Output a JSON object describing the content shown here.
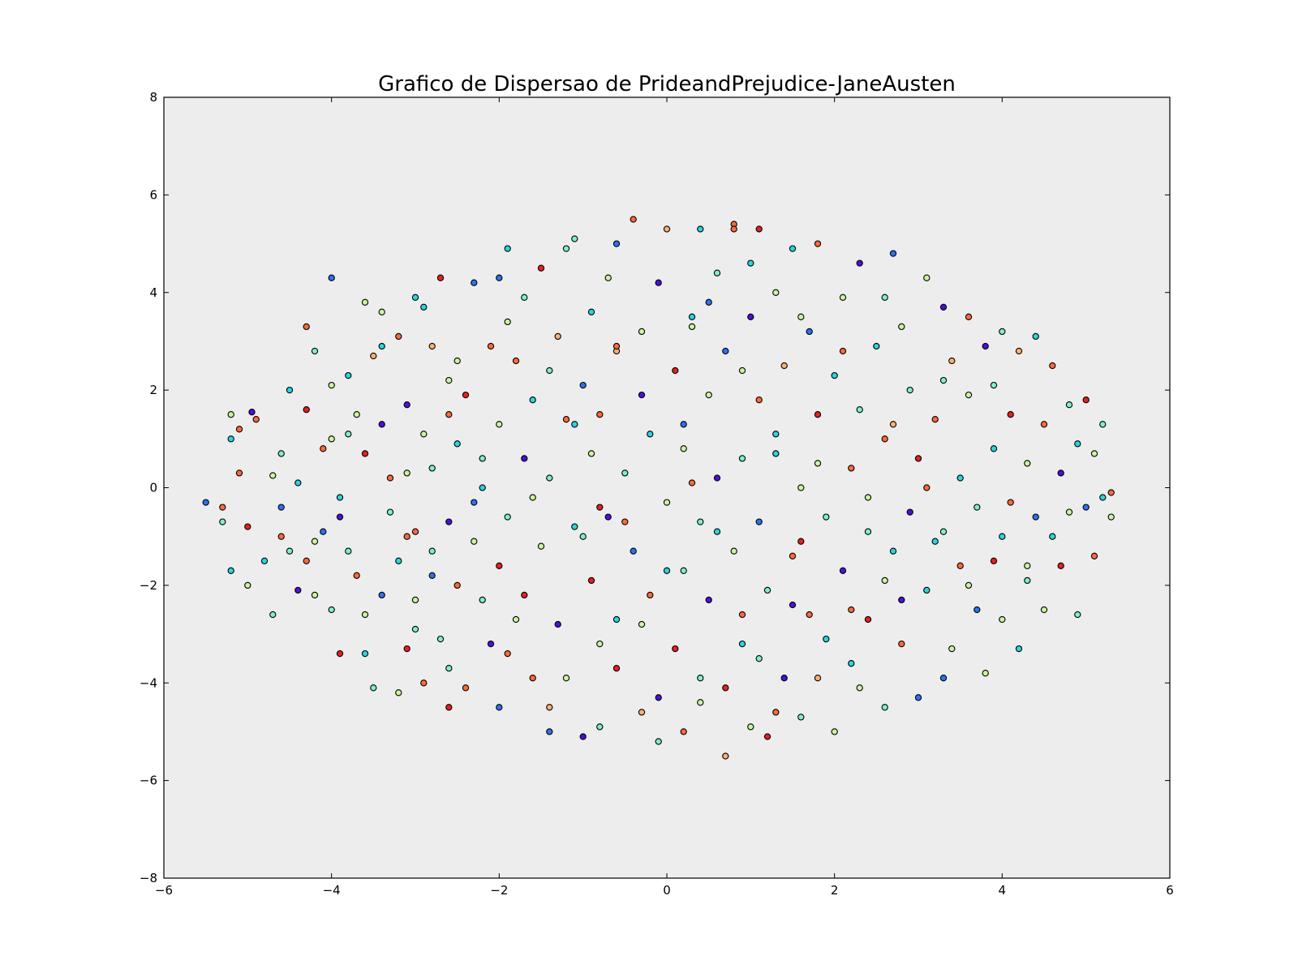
{
  "chart_data": {
    "type": "scatter",
    "title": "Grafico de Dispersao de PrideandPrejudice-JaneAusten",
    "xlabel": "",
    "ylabel": "",
    "xlim": [
      -6,
      6
    ],
    "ylim": [
      -8,
      8
    ],
    "xticks": [
      -6,
      -4,
      -2,
      0,
      2,
      4,
      6
    ],
    "yticks": [
      -8,
      -6,
      -4,
      -2,
      0,
      2,
      4,
      6,
      8
    ],
    "xtick_labels": [
      "−6",
      "−4",
      "−2",
      "0",
      "2",
      "4",
      "6"
    ],
    "ytick_labels": [
      "−8",
      "−6",
      "−4",
      "−2",
      "0",
      "2",
      "4",
      "6",
      "8"
    ],
    "grid": false,
    "legend": "none",
    "plot_background": "#ededed",
    "point_colormap": [
      "#4b0fe0",
      "#2c72f0",
      "#2ad4e0",
      "#7ef0c8",
      "#c9f59c",
      "#ffb070",
      "#ff6a3a",
      "#e8201a"
    ],
    "points": [
      [
        -5.5,
        -0.3,
        1
      ],
      [
        -5.3,
        -0.4,
        6
      ],
      [
        -5.3,
        -0.7,
        3
      ],
      [
        -5.2,
        1.0,
        2
      ],
      [
        -5.2,
        1.5,
        4
      ],
      [
        -5.1,
        1.2,
        6
      ],
      [
        -5.1,
        0.3,
        6
      ],
      [
        -5.2,
        -1.7,
        2
      ],
      [
        -5.0,
        -2.0,
        4
      ],
      [
        -5.0,
        -0.8,
        7
      ],
      [
        -4.9,
        1.4,
        6
      ],
      [
        -4.95,
        1.55,
        0
      ],
      [
        -4.8,
        -1.5,
        2
      ],
      [
        -4.7,
        0.25,
        4
      ],
      [
        -4.7,
        -2.6,
        3
      ],
      [
        -4.6,
        -0.4,
        1
      ],
      [
        -4.5,
        -1.3,
        3
      ],
      [
        -4.5,
        2.0,
        2
      ],
      [
        -4.4,
        -2.1,
        0
      ],
      [
        -4.4,
        0.1,
        2
      ],
      [
        -4.3,
        1.6,
        7
      ],
      [
        -4.3,
        -1.5,
        6
      ],
      [
        -4.2,
        -2.2,
        4
      ],
      [
        -4.2,
        2.8,
        3
      ],
      [
        -4.1,
        -0.9,
        1
      ],
      [
        -4.1,
        0.8,
        6
      ],
      [
        -4.0,
        4.3,
        1
      ],
      [
        -4.0,
        -2.5,
        3
      ],
      [
        -4.0,
        1.0,
        4
      ],
      [
        -3.9,
        -3.4,
        7
      ],
      [
        -3.9,
        -0.6,
        0
      ],
      [
        -3.8,
        2.3,
        2
      ],
      [
        -3.8,
        -1.3,
        3
      ],
      [
        -3.7,
        -1.8,
        6
      ],
      [
        -3.7,
        1.5,
        4
      ],
      [
        -3.6,
        -3.4,
        2
      ],
      [
        -3.6,
        0.7,
        7
      ],
      [
        -3.5,
        -4.1,
        3
      ],
      [
        -3.5,
        2.7,
        5
      ],
      [
        -3.4,
        -2.2,
        1
      ],
      [
        -3.4,
        1.3,
        0
      ],
      [
        -3.4,
        3.6,
        4
      ],
      [
        -3.3,
        -0.5,
        3
      ],
      [
        -3.2,
        -1.5,
        2
      ],
      [
        -3.2,
        3.1,
        6
      ],
      [
        -3.1,
        -3.3,
        7
      ],
      [
        -3.1,
        0.3,
        4
      ],
      [
        -3.1,
        1.7,
        0
      ],
      [
        -3.0,
        -2.9,
        3
      ],
      [
        -3.0,
        -0.9,
        6
      ],
      [
        -3.0,
        3.9,
        2
      ],
      [
        -2.9,
        -4.0,
        6
      ],
      [
        -2.9,
        1.1,
        4
      ],
      [
        -2.8,
        -1.8,
        1
      ],
      [
        -2.8,
        0.4,
        3
      ],
      [
        -2.8,
        2.9,
        5
      ],
      [
        -2.7,
        4.3,
        7
      ],
      [
        -2.7,
        -3.1,
        3
      ],
      [
        -2.6,
        -0.7,
        0
      ],
      [
        -2.6,
        2.2,
        4
      ],
      [
        -2.6,
        -4.5,
        7
      ],
      [
        -2.5,
        -2.0,
        6
      ],
      [
        -2.5,
        0.9,
        2
      ],
      [
        -2.4,
        1.9,
        7
      ],
      [
        -2.4,
        -4.1,
        6
      ],
      [
        -2.3,
        4.2,
        1
      ],
      [
        -2.3,
        -1.1,
        4
      ],
      [
        -2.2,
        -2.3,
        3
      ],
      [
        -2.2,
        0.0,
        2
      ],
      [
        -2.1,
        2.9,
        6
      ],
      [
        -2.1,
        -3.2,
        0
      ],
      [
        -2.0,
        -4.5,
        1
      ],
      [
        -2.0,
        1.3,
        4
      ],
      [
        -2.0,
        -1.6,
        7
      ],
      [
        -1.9,
        4.9,
        2
      ],
      [
        -1.9,
        -0.6,
        3
      ],
      [
        -1.8,
        2.6,
        6
      ],
      [
        -1.8,
        -2.7,
        4
      ],
      [
        -1.7,
        0.6,
        0
      ],
      [
        -1.7,
        3.9,
        3
      ],
      [
        -1.6,
        -3.9,
        6
      ],
      [
        -1.6,
        1.8,
        2
      ],
      [
        -1.5,
        -1.2,
        4
      ],
      [
        -1.5,
        4.5,
        7
      ],
      [
        -1.4,
        -5.0,
        1
      ],
      [
        -1.4,
        0.2,
        3
      ],
      [
        -1.3,
        -2.8,
        0
      ],
      [
        -1.3,
        3.1,
        5
      ],
      [
        -1.2,
        1.4,
        6
      ],
      [
        -1.2,
        -3.9,
        4
      ],
      [
        -1.1,
        5.1,
        3
      ],
      [
        -1.1,
        -0.8,
        2
      ],
      [
        -1.0,
        2.1,
        1
      ],
      [
        -1.0,
        -5.1,
        0
      ],
      [
        -0.9,
        0.7,
        4
      ],
      [
        -0.9,
        -1.9,
        7
      ],
      [
        -0.9,
        3.6,
        2
      ],
      [
        -0.8,
        -4.9,
        3
      ],
      [
        -0.8,
        1.5,
        6
      ],
      [
        -0.7,
        -0.6,
        0
      ],
      [
        -0.7,
        4.3,
        4
      ],
      [
        -0.6,
        -2.7,
        2
      ],
      [
        -0.6,
        2.8,
        5
      ],
      [
        -0.6,
        -3.7,
        7
      ],
      [
        -0.5,
        0.3,
        3
      ],
      [
        -0.4,
        5.5,
        6
      ],
      [
        -0.4,
        -1.3,
        1
      ],
      [
        -0.3,
        3.2,
        4
      ],
      [
        -0.3,
        -4.6,
        5
      ],
      [
        -0.2,
        1.1,
        2
      ],
      [
        -0.2,
        -2.2,
        6
      ],
      [
        -0.1,
        4.2,
        0
      ],
      [
        -0.1,
        -5.2,
        3
      ],
      [
        0.0,
        5.3,
        5
      ],
      [
        0.0,
        -0.3,
        4
      ],
      [
        0.1,
        2.4,
        7
      ],
      [
        0.1,
        -3.3,
        7
      ],
      [
        0.2,
        1.3,
        1
      ],
      [
        0.2,
        -1.7,
        3
      ],
      [
        0.2,
        -5.0,
        6
      ],
      [
        0.3,
        3.5,
        2
      ],
      [
        0.3,
        0.1,
        6
      ],
      [
        0.4,
        -4.4,
        4
      ],
      [
        0.4,
        5.3,
        2
      ],
      [
        0.5,
        -2.3,
        0
      ],
      [
        0.5,
        1.9,
        4
      ],
      [
        0.6,
        4.4,
        3
      ],
      [
        0.6,
        -0.9,
        2
      ],
      [
        0.7,
        -5.5,
        5
      ],
      [
        0.7,
        -4.1,
        7
      ],
      [
        0.7,
        2.8,
        1
      ],
      [
        0.8,
        -1.3,
        4
      ],
      [
        0.8,
        5.4,
        6
      ],
      [
        0.9,
        0.6,
        3
      ],
      [
        0.9,
        -3.2,
        2
      ],
      [
        1.0,
        3.5,
        0
      ],
      [
        1.0,
        -4.9,
        4
      ],
      [
        1.1,
        1.8,
        6
      ],
      [
        1.1,
        -0.7,
        1
      ],
      [
        1.1,
        5.3,
        7
      ],
      [
        1.2,
        -5.1,
        7
      ],
      [
        1.2,
        -2.1,
        3
      ],
      [
        1.3,
        4.0,
        4
      ],
      [
        1.3,
        0.7,
        2
      ],
      [
        1.4,
        -3.9,
        0
      ],
      [
        1.4,
        2.5,
        5
      ],
      [
        1.5,
        -1.4,
        6
      ],
      [
        1.5,
        4.9,
        2
      ],
      [
        1.6,
        -4.7,
        3
      ],
      [
        1.6,
        0.0,
        4
      ],
      [
        1.7,
        3.2,
        1
      ],
      [
        1.7,
        -2.6,
        6
      ],
      [
        1.8,
        1.5,
        7
      ],
      [
        1.8,
        -3.9,
        5
      ],
      [
        1.8,
        5.0,
        6
      ],
      [
        1.9,
        -0.6,
        3
      ],
      [
        2.0,
        2.3,
        2
      ],
      [
        2.0,
        -5.0,
        4
      ],
      [
        2.1,
        -1.7,
        0
      ],
      [
        2.1,
        3.9,
        4
      ],
      [
        2.2,
        0.4,
        6
      ],
      [
        2.2,
        -3.6,
        2
      ],
      [
        2.3,
        1.6,
        3
      ],
      [
        2.3,
        4.6,
        0
      ],
      [
        2.4,
        -2.7,
        7
      ],
      [
        2.4,
        -0.2,
        4
      ],
      [
        2.5,
        2.9,
        2
      ],
      [
        2.6,
        -4.5,
        3
      ],
      [
        2.6,
        1.0,
        6
      ],
      [
        2.7,
        4.8,
        1
      ],
      [
        2.7,
        -1.3,
        2
      ],
      [
        2.8,
        3.3,
        4
      ],
      [
        2.8,
        -3.2,
        6
      ],
      [
        2.9,
        -0.5,
        0
      ],
      [
        2.9,
        2.0,
        3
      ],
      [
        3.0,
        -4.3,
        1
      ],
      [
        3.0,
        0.6,
        7
      ],
      [
        3.1,
        4.3,
        4
      ],
      [
        3.1,
        -2.1,
        2
      ],
      [
        3.2,
        1.4,
        6
      ],
      [
        3.3,
        3.7,
        0
      ],
      [
        3.3,
        -0.9,
        3
      ],
      [
        3.4,
        -3.3,
        4
      ],
      [
        3.4,
        2.6,
        5
      ],
      [
        3.5,
        0.2,
        2
      ],
      [
        3.5,
        -1.6,
        6
      ],
      [
        3.6,
        1.9,
        4
      ],
      [
        3.6,
        3.5,
        6
      ],
      [
        3.7,
        -2.5,
        1
      ],
      [
        3.7,
        -0.4,
        3
      ],
      [
        3.8,
        2.9,
        0
      ],
      [
        3.8,
        -3.8,
        4
      ],
      [
        3.9,
        0.8,
        2
      ],
      [
        3.9,
        -1.5,
        7
      ],
      [
        4.0,
        3.2,
        3
      ],
      [
        4.0,
        -2.7,
        4
      ],
      [
        4.1,
        1.5,
        7
      ],
      [
        4.1,
        -0.3,
        6
      ],
      [
        4.2,
        -3.3,
        2
      ],
      [
        4.2,
        2.8,
        5
      ],
      [
        4.3,
        0.5,
        4
      ],
      [
        4.3,
        -1.9,
        3
      ],
      [
        4.4,
        3.1,
        2
      ],
      [
        4.4,
        -0.6,
        1
      ],
      [
        4.5,
        1.3,
        6
      ],
      [
        4.5,
        -2.5,
        4
      ],
      [
        4.6,
        -1.0,
        2
      ],
      [
        4.6,
        2.5,
        6
      ],
      [
        4.7,
        0.3,
        0
      ],
      [
        4.7,
        -1.6,
        7
      ],
      [
        4.8,
        1.7,
        3
      ],
      [
        4.8,
        -0.5,
        4
      ],
      [
        4.9,
        -2.6,
        3
      ],
      [
        4.9,
        0.9,
        2
      ],
      [
        5.0,
        1.8,
        7
      ],
      [
        5.0,
        -0.4,
        1
      ],
      [
        5.1,
        0.7,
        4
      ],
      [
        5.1,
        -1.4,
        6
      ],
      [
        5.2,
        -0.2,
        2
      ],
      [
        5.2,
        1.3,
        3
      ],
      [
        5.3,
        -0.1,
        6
      ],
      [
        5.3,
        -0.6,
        4
      ],
      [
        -3.6,
        3.8,
        4
      ],
      [
        -4.3,
        3.3,
        6
      ],
      [
        -2.0,
        4.3,
        1
      ],
      [
        1.0,
        4.6,
        2
      ],
      [
        -1.2,
        4.9,
        3
      ],
      [
        0.8,
        5.3,
        6
      ],
      [
        -0.6,
        5.0,
        1
      ],
      [
        0.3,
        3.3,
        4
      ],
      [
        -2.9,
        3.7,
        2
      ],
      [
        -3.8,
        1.1,
        3
      ],
      [
        -1.4,
        -4.5,
        5
      ],
      [
        -0.1,
        -4.3,
        0
      ],
      [
        2.3,
        -4.1,
        4
      ],
      [
        -2.6,
        -3.7,
        3
      ],
      [
        1.3,
        -4.6,
        6
      ],
      [
        3.3,
        -3.9,
        1
      ],
      [
        -3.2,
        -4.2,
        4
      ],
      [
        1.9,
        -3.1,
        2
      ],
      [
        -0.8,
        -3.2,
        4
      ],
      [
        0.4,
        -3.9,
        3
      ],
      [
        -1.9,
        -3.4,
        6
      ],
      [
        2.8,
        -2.3,
        0
      ],
      [
        -4.2,
        -1.1,
        4
      ],
      [
        -2.3,
        -0.3,
        1
      ],
      [
        0.9,
        -2.6,
        6
      ],
      [
        -1.0,
        -1.0,
        3
      ],
      [
        0.0,
        -1.7,
        2
      ],
      [
        1.6,
        -1.1,
        7
      ],
      [
        -3.0,
        -2.3,
        4
      ],
      [
        -0.5,
        -0.7,
        6
      ],
      [
        2.4,
        -0.9,
        3
      ],
      [
        3.6,
        -2.0,
        4
      ],
      [
        -4.6,
        0.7,
        3
      ],
      [
        -3.3,
        0.2,
        6
      ],
      [
        -1.6,
        -0.2,
        4
      ],
      [
        0.6,
        0.2,
        0
      ],
      [
        1.8,
        0.5,
        4
      ],
      [
        3.1,
        0.0,
        6
      ],
      [
        4.0,
        -1.0,
        2
      ],
      [
        -2.2,
        0.6,
        3
      ],
      [
        -0.8,
        -0.4,
        7
      ],
      [
        0.2,
        0.8,
        4
      ],
      [
        1.3,
        1.1,
        2
      ],
      [
        2.7,
        1.3,
        5
      ],
      [
        3.9,
        2.1,
        3
      ],
      [
        -4.0,
        2.1,
        4
      ],
      [
        -2.6,
        1.5,
        6
      ],
      [
        -1.4,
        2.4,
        3
      ],
      [
        -0.3,
        1.9,
        0
      ],
      [
        0.9,
        2.4,
        4
      ],
      [
        2.1,
        2.8,
        6
      ],
      [
        3.3,
        2.2,
        3
      ],
      [
        -3.4,
        2.9,
        2
      ],
      [
        -1.9,
        3.4,
        4
      ],
      [
        -0.6,
        2.9,
        6
      ],
      [
        0.5,
        3.8,
        1
      ],
      [
        1.6,
        3.5,
        4
      ],
      [
        2.6,
        3.9,
        3
      ],
      [
        -2.5,
        2.6,
        4
      ],
      [
        -1.1,
        1.3,
        2
      ],
      [
        0.4,
        -0.7,
        3
      ],
      [
        1.5,
        -2.4,
        0
      ],
      [
        2.6,
        -1.9,
        4
      ],
      [
        -1.7,
        -2.2,
        7
      ],
      [
        -2.8,
        -1.3,
        3
      ],
      [
        -3.9,
        -0.2,
        2
      ],
      [
        -3.1,
        -1.0,
        6
      ],
      [
        -0.3,
        -2.8,
        4
      ],
      [
        1.1,
        -3.5,
        3
      ],
      [
        2.2,
        -2.5,
        6
      ],
      [
        3.2,
        -1.1,
        2
      ],
      [
        4.3,
        -1.6,
        4
      ],
      [
        -4.6,
        -1.0,
        6
      ],
      [
        -3.6,
        -2.6,
        4
      ]
    ]
  }
}
